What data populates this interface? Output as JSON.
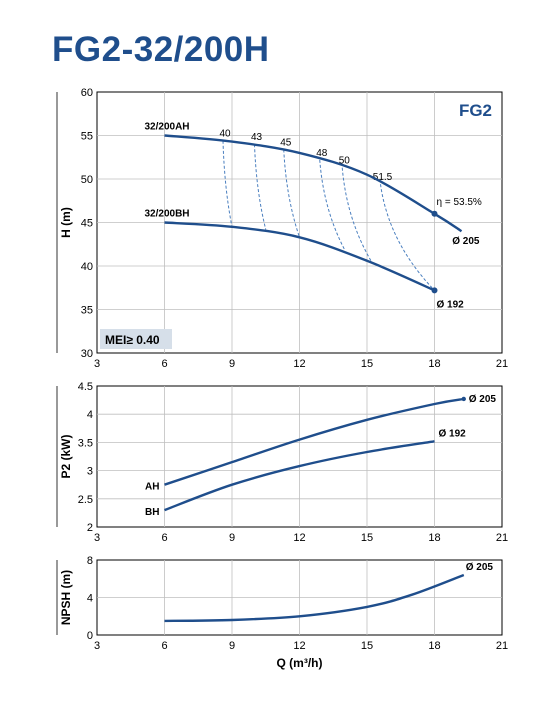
{
  "title": "FG2-32/200H",
  "colors": {
    "curve": "#1f4e8c",
    "eff": "#4a7fbf",
    "grid": "#bfbfbf",
    "mei_bg": "#d6dfe9"
  },
  "chart_data": [
    {
      "id": "head",
      "type": "line",
      "badge": "FG2",
      "mei": "MEI≥ 0.40",
      "ylabel": "H (m)",
      "xlim": [
        3,
        21
      ],
      "ylim": [
        30,
        60
      ],
      "xticks": [
        3,
        6,
        9,
        12,
        15,
        18,
        21
      ],
      "yticks": [
        30,
        35,
        40,
        45,
        50,
        55,
        60
      ],
      "series": [
        {
          "name": "32/200AH",
          "end_label": "Ø 205",
          "points": [
            [
              6,
              55.0
            ],
            [
              9,
              54.3
            ],
            [
              12,
              53.0
            ],
            [
              15,
              50.5
            ],
            [
              18,
              46.0
            ],
            [
              19.2,
              44.0
            ]
          ],
          "marker": [
            18,
            46.0
          ],
          "marker_label": "η = 53.5%"
        },
        {
          "name": "32/200BH",
          "end_label": "Ø 192",
          "points": [
            [
              6,
              45.0
            ],
            [
              9,
              44.5
            ],
            [
              12,
              43.3
            ],
            [
              15,
              40.6
            ],
            [
              18,
              37.2
            ]
          ],
          "marker": [
            18,
            37.2
          ]
        }
      ],
      "efficiency": [
        {
          "label": "40",
          "top": [
            8.6,
            54.4
          ],
          "bottom": [
            9.0,
            44.5
          ]
        },
        {
          "label": "43",
          "top": [
            10.0,
            54.0
          ],
          "bottom": [
            10.5,
            44.2
          ]
        },
        {
          "label": "45",
          "top": [
            11.3,
            53.4
          ],
          "bottom": [
            12.0,
            43.3
          ]
        },
        {
          "label": "48",
          "top": [
            12.9,
            52.2
          ],
          "bottom": [
            14.0,
            41.9
          ]
        },
        {
          "label": "50",
          "top": [
            13.9,
            51.3
          ],
          "bottom": [
            15.2,
            40.5
          ]
        },
        {
          "label": "51.5",
          "top": [
            15.6,
            49.4
          ],
          "bottom": [
            18.0,
            37.2
          ]
        }
      ]
    },
    {
      "id": "power",
      "type": "line",
      "ylabel": "P2 (kW)",
      "xlim": [
        3,
        21
      ],
      "ylim": [
        2,
        4.5
      ],
      "xticks": [
        3,
        6,
        9,
        12,
        15,
        18,
        21
      ],
      "yticks": [
        "2",
        "2.5",
        "3",
        "3.5",
        "4",
        "4.5"
      ],
      "series": [
        {
          "name": "AH",
          "end_label": "Ø 205",
          "points": [
            [
              6,
              2.75
            ],
            [
              9,
              3.15
            ],
            [
              12,
              3.55
            ],
            [
              15,
              3.9
            ],
            [
              18,
              4.18
            ],
            [
              19.3,
              4.27
            ]
          ]
        },
        {
          "name": "BH",
          "end_label": "Ø 192",
          "points": [
            [
              6,
              2.3
            ],
            [
              9,
              2.75
            ],
            [
              12,
              3.08
            ],
            [
              15,
              3.33
            ],
            [
              18,
              3.52
            ]
          ]
        }
      ]
    },
    {
      "id": "npsh",
      "type": "line",
      "ylabel": "NPSH (m)",
      "xlabel": "Q (m³/h)",
      "xlim": [
        3,
        21
      ],
      "ylim": [
        0,
        8
      ],
      "xticks": [
        3,
        6,
        9,
        12,
        15,
        18,
        21
      ],
      "yticks": [
        0,
        4,
        8
      ],
      "series": [
        {
          "name": "",
          "end_label": "Ø 205",
          "points": [
            [
              6,
              1.5
            ],
            [
              9,
              1.6
            ],
            [
              12,
              2.0
            ],
            [
              15,
              3.0
            ],
            [
              17,
              4.3
            ],
            [
              19.3,
              6.4
            ]
          ]
        }
      ]
    }
  ]
}
